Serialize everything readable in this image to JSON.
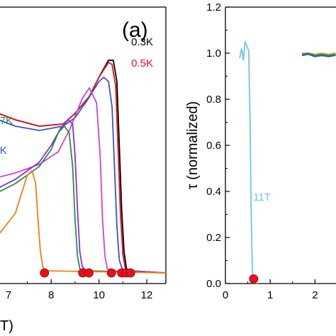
{
  "chart_data": [
    {
      "type": "line",
      "panel_label": "(a)",
      "xlabel": "T)",
      "ylabel": "",
      "xlim": [
        5.8,
        12.8
      ],
      "ylim": [
        -0.05,
        1.25
      ],
      "xticks": [
        8,
        10,
        12
      ],
      "xtick_labels": [
        "8",
        "10",
        "12"
      ],
      "partial_tick_label": "7",
      "grid": false,
      "series": [
        {
          "name": "0.3K",
          "color": "#000000",
          "x": [
            5.8,
            6.5,
            7.5,
            8.5,
            9.0,
            9.6,
            10.0,
            10.4,
            10.6,
            10.75,
            10.85,
            10.95,
            11.05,
            11.15,
            11.3,
            12.8
          ],
          "y": [
            0.75,
            0.72,
            0.69,
            0.7,
            0.75,
            0.83,
            0.92,
            1.0,
            1.0,
            0.9,
            0.6,
            0.3,
            0.1,
            0.02,
            0.01,
            0.0
          ]
        },
        {
          "name": "0.5K",
          "color": "#e8101b",
          "x": [
            5.8,
            6.5,
            7.5,
            8.5,
            9.0,
            9.6,
            10.0,
            10.4,
            10.55,
            10.7,
            10.8,
            10.9,
            11.0,
            11.1,
            11.25,
            12.8
          ],
          "y": [
            0.75,
            0.72,
            0.69,
            0.7,
            0.75,
            0.83,
            0.92,
            0.99,
            0.98,
            0.88,
            0.58,
            0.28,
            0.09,
            0.02,
            0.01,
            0.0
          ]
        },
        {
          "name": "",
          "color": "#3355cc",
          "x": [
            5.8,
            6.5,
            7.5,
            8.5,
            9.0,
            9.5,
            10.0,
            10.2,
            10.4,
            10.55,
            10.65,
            10.75,
            10.85,
            11.0,
            12.8
          ],
          "y": [
            0.72,
            0.69,
            0.67,
            0.69,
            0.73,
            0.81,
            0.9,
            0.92,
            0.9,
            0.78,
            0.5,
            0.22,
            0.06,
            0.01,
            0.0
          ]
        },
        {
          "name": "",
          "color": "#cc44cc",
          "x": [
            5.8,
            6.5,
            7.5,
            8.3,
            8.8,
            9.3,
            9.6,
            9.9,
            10.05,
            10.15,
            10.25,
            10.35,
            10.5,
            12.8
          ],
          "y": [
            0.45,
            0.47,
            0.51,
            0.57,
            0.68,
            0.82,
            0.87,
            0.8,
            0.55,
            0.25,
            0.08,
            0.02,
            0.01,
            0.0
          ]
        },
        {
          "name": "",
          "color": "#8a2be2",
          "x": [
            5.8,
            6.5,
            7.5,
            8.0,
            8.4,
            8.7,
            8.9,
            9.0,
            9.1,
            9.2,
            9.3,
            9.45,
            12.8
          ],
          "y": [
            0.4,
            0.44,
            0.52,
            0.6,
            0.68,
            0.72,
            0.7,
            0.55,
            0.3,
            0.1,
            0.03,
            0.01,
            0.0
          ]
        },
        {
          "name": "",
          "color": "#22923a",
          "x": [
            5.8,
            6.5,
            7.5,
            8.0,
            8.3,
            8.55,
            8.75,
            8.9,
            9.0,
            9.1,
            9.2,
            9.35,
            12.8
          ],
          "y": [
            0.38,
            0.42,
            0.5,
            0.58,
            0.66,
            0.69,
            0.66,
            0.5,
            0.25,
            0.08,
            0.02,
            0.01,
            0.0
          ]
        },
        {
          "name": "",
          "color": "#f07f13",
          "x": [
            5.8,
            6.5,
            7.0,
            7.2,
            7.35,
            7.45,
            7.55,
            7.65,
            7.75,
            12.8
          ],
          "y": [
            0.18,
            0.28,
            0.46,
            0.48,
            0.42,
            0.25,
            0.1,
            0.03,
            0.01,
            0.0
          ]
        }
      ],
      "markers": {
        "color": "#e8101b",
        "x": [
          7.72,
          9.32,
          9.58,
          10.52,
          10.95,
          11.14,
          11.32
        ],
        "y": [
          0.0,
          0.0,
          0.0,
          0.0,
          0.0,
          0.0,
          0.0
        ]
      },
      "labels": [
        {
          "text": "0.3K",
          "color": "#000000",
          "x": 11.35,
          "y": 1.07
        },
        {
          "text": "0.5K",
          "color": "#e8101b",
          "x": 11.35,
          "y": 0.97
        },
        {
          "text": "7K",
          "color": "#22923a",
          "x": 5.85,
          "y": 0.7
        },
        {
          "text": "K",
          "color": "#3355cc",
          "x": 5.85,
          "y": 0.56
        }
      ]
    },
    {
      "type": "line",
      "xlabel": "",
      "ylabel": "τ (normalized)",
      "xlim": [
        0,
        2.5
      ],
      "ylim": [
        0,
        1.2
      ],
      "xticks": [
        0,
        1,
        2
      ],
      "xtick_labels": [
        "0",
        "1",
        "2"
      ],
      "yticks": [
        0.0,
        0.2,
        0.4,
        0.6,
        0.8,
        1.0,
        1.2
      ],
      "ytick_labels": [
        "0.0",
        "0.2",
        "0.4",
        "0.6",
        "0.8",
        "1.0",
        "1.2"
      ],
      "grid": false,
      "series": [
        {
          "name": "11T",
          "color": "#6ec6e6",
          "x": [
            0.32,
            0.36,
            0.4,
            0.44,
            0.48,
            0.52,
            0.55,
            0.57,
            0.58,
            0.59,
            0.6,
            0.61,
            0.62,
            0.63,
            0.64,
            0.66,
            0.7
          ],
          "y": [
            0.98,
            1.02,
            0.97,
            1.05,
            1.03,
            1.01,
            0.7,
            0.4,
            0.25,
            0.15,
            0.08,
            0.03,
            0.01,
            0.0,
            0.0,
            0.005,
            0.0
          ]
        },
        {
          "name": "",
          "color": "#e8a020",
          "x": [
            1.72,
            1.85,
            2.0,
            2.15,
            2.3,
            2.45
          ],
          "y": [
            1.0,
            1.0,
            0.995,
            1.0,
            0.995,
            1.0
          ]
        },
        {
          "name": "",
          "color": "#22923a",
          "x": [
            1.72,
            1.85,
            2.0,
            2.15,
            2.3,
            2.45
          ],
          "y": [
            0.995,
            1.0,
            0.99,
            0.995,
            0.99,
            0.995
          ]
        },
        {
          "name": "",
          "color": "#3355cc",
          "x": [
            1.72,
            1.85,
            2.0,
            2.15,
            2.3,
            2.45
          ],
          "y": [
            0.99,
            0.995,
            0.985,
            0.99,
            0.985,
            0.99
          ]
        }
      ],
      "markers": {
        "color": "#e8101b",
        "x": [
          0.63
        ],
        "y": [
          0.02
        ]
      },
      "labels": [
        {
          "text": "11T",
          "color": "#6ec6e6",
          "x": 0.62,
          "y": 0.36
        }
      ]
    }
  ]
}
